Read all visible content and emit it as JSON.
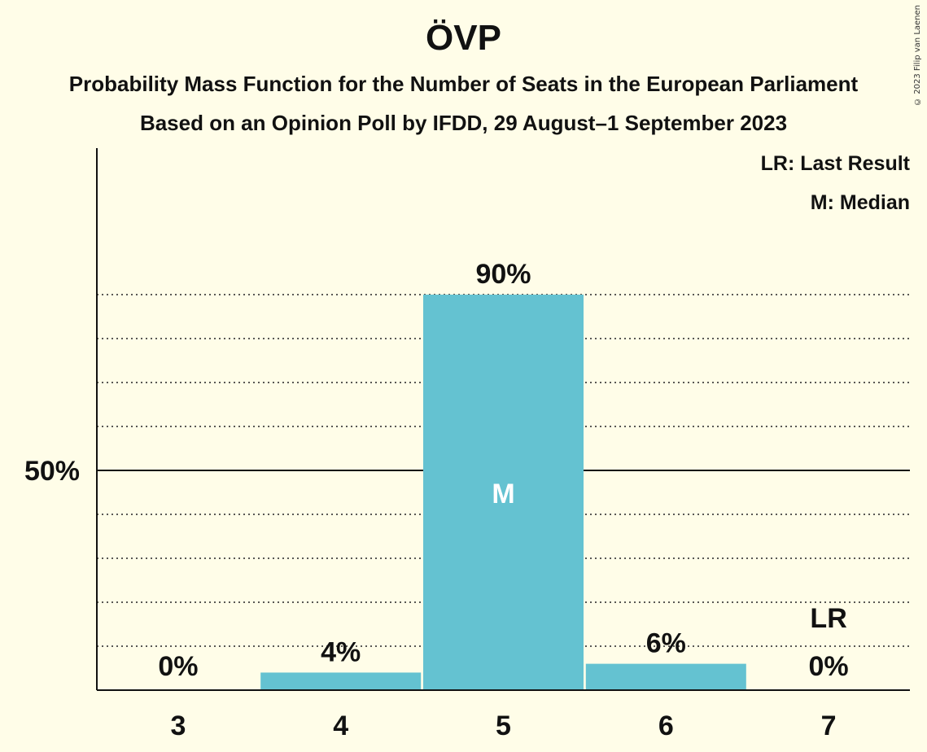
{
  "header": {
    "title": "ÖVP",
    "subtitle_line1": "Probability Mass Function for the Number of Seats in the European Parliament",
    "subtitle_line2": "Based on an Opinion Poll by IFDD, 29 August–1 September 2023",
    "copyright": "© 2023 Filip van Laenen"
  },
  "legend": {
    "last_result": "LR: Last Result",
    "median": "M: Median"
  },
  "colors": {
    "background": "#fffde8",
    "bar": "#64c2d1",
    "text": "#111111"
  },
  "chart_data": {
    "type": "bar",
    "title": "ÖVP",
    "xlabel": "",
    "ylabel": "",
    "categories": [
      "3",
      "4",
      "5",
      "6",
      "7"
    ],
    "values": [
      0,
      4,
      90,
      6,
      0
    ],
    "value_labels": [
      "0%",
      "4%",
      "90%",
      "6%",
      "0%"
    ],
    "ylim": [
      0,
      100
    ],
    "y_ticks": [
      {
        "value": 50,
        "label": "50%"
      }
    ],
    "gridlines_dotted_every": 10,
    "median_category": "5",
    "median_marker": "M",
    "last_result_category": "7",
    "last_result_marker": "LR",
    "legend_position": "top-right"
  }
}
